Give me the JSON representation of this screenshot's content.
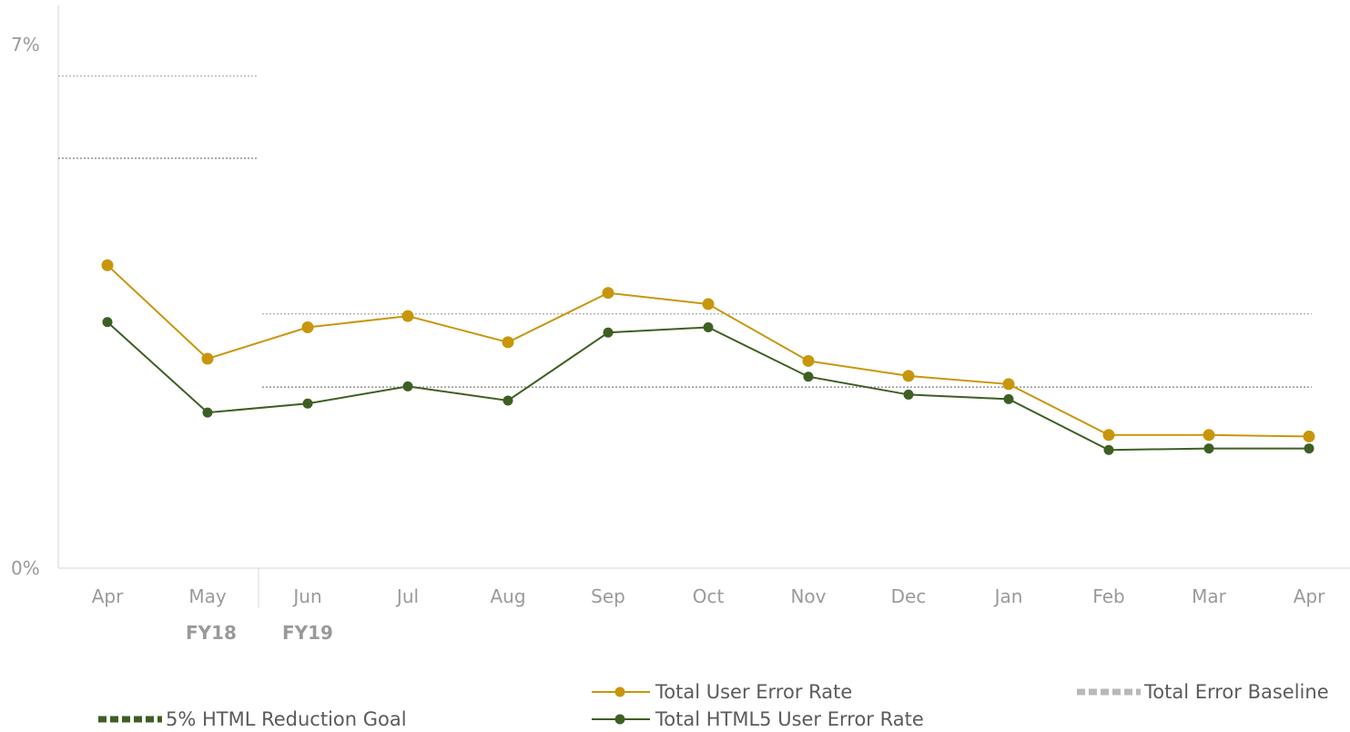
{
  "chart_data": {
    "type": "line",
    "categories": [
      "Apr",
      "May",
      "Jun",
      "Jul",
      "Aug",
      "Sep",
      "Oct",
      "Nov",
      "Dec",
      "Jan",
      "Feb",
      "Mar",
      "Apr"
    ],
    "fiscal_years": [
      "FY18",
      "FY19"
    ],
    "y_tick_labels": [
      "7%",
      "0%"
    ],
    "ylim": [
      0,
      7
    ],
    "series": [
      {
        "name": "Total User Error Rate",
        "color": "#c8960c",
        "values": [
          4.05,
          2.8,
          3.22,
          3.37,
          3.02,
          3.68,
          3.53,
          2.77,
          2.57,
          2.46,
          1.78,
          1.78,
          1.76
        ]
      },
      {
        "name": "Total HTML5 User Error Rate",
        "color": "#3e5f23",
        "values": [
          3.29,
          2.08,
          2.2,
          2.43,
          2.24,
          3.15,
          3.22,
          2.56,
          2.32,
          2.26,
          1.58,
          1.6,
          1.6
        ]
      }
    ],
    "reference_lines": [
      {
        "name": "Total Error Baseline",
        "color": "#b8b8b8",
        "segments": [
          {
            "from": "Apr",
            "to": "May",
            "value": 6.58
          },
          {
            "from": "Jun",
            "to": "Apr",
            "value": 3.4
          }
        ]
      },
      {
        "name": "5% HTML Reduction Goal",
        "color": "#9a9a9a",
        "segments": [
          {
            "from": "Apr",
            "to": "May",
            "value": 5.48
          },
          {
            "from": "Jun",
            "to": "Apr",
            "value": 2.42
          }
        ]
      }
    ],
    "legend": {
      "items": [
        {
          "label": "Total User Error Rate",
          "kind": "line-marker",
          "color": "#c8960c"
        },
        {
          "label": "Total Error Baseline",
          "kind": "dashed",
          "color": "#b8b8b8"
        },
        {
          "label": "5% HTML Reduction Goal",
          "kind": "dashed",
          "color": "#3e5f23"
        },
        {
          "label": "Total HTML5 User Error Rate",
          "kind": "line-marker",
          "color": "#3e5f23"
        }
      ]
    },
    "grid": false
  }
}
